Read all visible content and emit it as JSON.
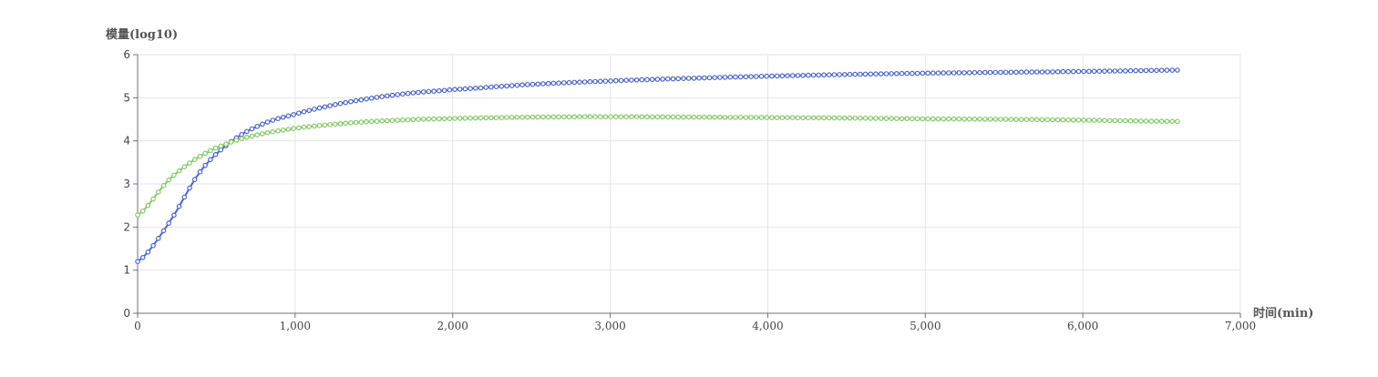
{
  "chart_data": {
    "type": "line",
    "ylabel": "模量(log10)",
    "xlabel": "时间(min)",
    "xlim": [
      0,
      7000
    ],
    "ylim": [
      0,
      6
    ],
    "x_ticks": [
      0,
      1000,
      2000,
      3000,
      4000,
      5000,
      6000,
      7000
    ],
    "x_tick_labels": [
      "0",
      "1,000",
      "2,000",
      "3,000",
      "4,000",
      "5,000",
      "6,000",
      "7,000"
    ],
    "y_ticks": [
      0,
      1,
      2,
      3,
      4,
      5,
      6
    ],
    "y_tick_labels": [
      "0",
      "1",
      "2",
      "3",
      "4",
      "5",
      "6"
    ],
    "grid": true,
    "series": [
      {
        "color": "#4e68c6",
        "x": [
          0,
          200,
          400,
          600,
          800,
          1000,
          1200,
          1400,
          1600,
          1800,
          2000,
          2500,
          3000,
          3500,
          4000,
          4500,
          5000,
          5500,
          6000,
          6600
        ],
        "y": [
          1.2,
          2.1,
          3.3,
          4.0,
          4.4,
          4.62,
          4.8,
          4.94,
          5.05,
          5.13,
          5.19,
          5.31,
          5.39,
          5.45,
          5.5,
          5.54,
          5.57,
          5.59,
          5.61,
          5.64
        ]
      },
      {
        "color": "#86c86b",
        "x": [
          0,
          200,
          400,
          600,
          800,
          1000,
          1200,
          1400,
          1600,
          1800,
          2000,
          2500,
          3000,
          3500,
          4000,
          4500,
          5000,
          5500,
          6000,
          6600
        ],
        "y": [
          2.28,
          3.1,
          3.65,
          3.98,
          4.17,
          4.29,
          4.37,
          4.43,
          4.47,
          4.5,
          4.52,
          4.55,
          4.56,
          4.55,
          4.54,
          4.53,
          4.51,
          4.5,
          4.48,
          4.45
        ]
      }
    ]
  }
}
